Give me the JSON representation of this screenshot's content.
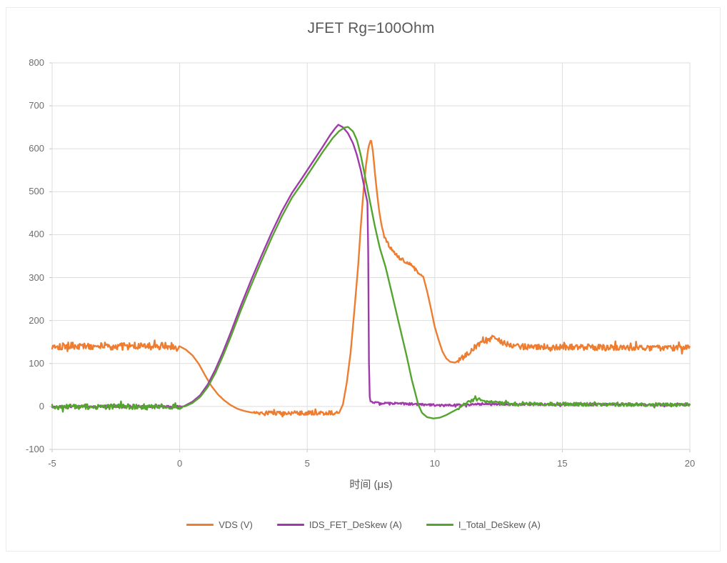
{
  "chart_data": {
    "type": "line",
    "title": "JFET Rg=100Ohm",
    "xlabel": "时间 (μs)",
    "xlim": [
      -5,
      20
    ],
    "ylim": [
      -100,
      800
    ],
    "x_ticks": [
      -5,
      0,
      5,
      10,
      15,
      20
    ],
    "y_ticks": [
      -100,
      0,
      100,
      200,
      300,
      400,
      500,
      600,
      700,
      800
    ],
    "grid": true,
    "legend_position": "bottom",
    "colors": {
      "background": "#FFFFFF",
      "gridline": "#DEDEDE",
      "axis_line": "#C3C3C3",
      "title_text": "#595959",
      "tick_text": "#6E6E6E"
    },
    "series": [
      {
        "key": "vds",
        "name": "VDS (V)",
        "color": "#ED7D31",
        "seed": 101,
        "noise": [
          [
            -5,
            -0.05,
            9
          ],
          [
            2.9,
            6.2,
            5
          ],
          [
            8.0,
            9.5,
            4
          ],
          [
            10.9,
            20,
            7
          ]
        ],
        "points": [
          [
            -5,
            141
          ],
          [
            0,
            140
          ],
          [
            0.25,
            132
          ],
          [
            0.5,
            119
          ],
          [
            0.75,
            99
          ],
          [
            1.0,
            72
          ],
          [
            1.25,
            47
          ],
          [
            1.5,
            28
          ],
          [
            1.75,
            14
          ],
          [
            2.0,
            3
          ],
          [
            2.25,
            -5
          ],
          [
            2.5,
            -10
          ],
          [
            2.8,
            -14
          ],
          [
            3.0,
            -15
          ],
          [
            6.25,
            -15
          ],
          [
            6.4,
            5
          ],
          [
            6.55,
            55
          ],
          [
            6.7,
            125
          ],
          [
            6.85,
            225
          ],
          [
            7.0,
            330
          ],
          [
            7.1,
            420
          ],
          [
            7.2,
            498
          ],
          [
            7.3,
            560
          ],
          [
            7.4,
            604
          ],
          [
            7.5,
            622
          ],
          [
            7.58,
            592
          ],
          [
            7.66,
            540
          ],
          [
            7.74,
            495
          ],
          [
            7.82,
            455
          ],
          [
            7.92,
            420
          ],
          [
            8.05,
            390
          ],
          [
            8.3,
            366
          ],
          [
            8.55,
            349
          ],
          [
            8.8,
            338
          ],
          [
            9.05,
            330
          ],
          [
            9.3,
            315
          ],
          [
            9.55,
            302
          ],
          [
            9.7,
            268
          ],
          [
            9.85,
            228
          ],
          [
            10.0,
            185
          ],
          [
            10.15,
            155
          ],
          [
            10.3,
            128
          ],
          [
            10.45,
            112
          ],
          [
            10.6,
            104
          ],
          [
            10.8,
            102
          ],
          [
            11.0,
            110
          ],
          [
            11.25,
            122
          ],
          [
            11.5,
            134
          ],
          [
            11.75,
            146
          ],
          [
            12.0,
            153
          ],
          [
            12.25,
            158
          ],
          [
            12.5,
            153
          ],
          [
            12.75,
            147
          ],
          [
            13.0,
            142
          ],
          [
            13.3,
            139
          ],
          [
            20,
            136
          ]
        ]
      },
      {
        "key": "ids_fet_deskew",
        "name": "IDS_FET_DeSkew (A)",
        "color": "#A03AAC",
        "seed": 202,
        "noise": [
          [
            -5,
            0.05,
            2.5
          ],
          [
            7.55,
            20,
            2.5
          ]
        ],
        "points": [
          [
            -5,
            0
          ],
          [
            0.15,
            0
          ],
          [
            0.5,
            11
          ],
          [
            0.8,
            26
          ],
          [
            1.1,
            51
          ],
          [
            1.4,
            86
          ],
          [
            1.7,
            127
          ],
          [
            2.0,
            172
          ],
          [
            2.4,
            235
          ],
          [
            2.8,
            294
          ],
          [
            3.2,
            350
          ],
          [
            3.6,
            404
          ],
          [
            4.0,
            454
          ],
          [
            4.4,
            497
          ],
          [
            4.8,
            532
          ],
          [
            5.2,
            568
          ],
          [
            5.6,
            604
          ],
          [
            5.9,
            632
          ],
          [
            6.1,
            648
          ],
          [
            6.22,
            656
          ],
          [
            6.4,
            650
          ],
          [
            6.6,
            636
          ],
          [
            6.8,
            612
          ],
          [
            6.95,
            585
          ],
          [
            7.1,
            550
          ],
          [
            7.2,
            522
          ],
          [
            7.3,
            492
          ],
          [
            7.38,
            470
          ],
          [
            7.4,
            250
          ],
          [
            7.43,
            30
          ],
          [
            7.48,
            12
          ],
          [
            7.7,
            8
          ],
          [
            9.0,
            6
          ],
          [
            9.8,
            4
          ],
          [
            10.4,
            2
          ],
          [
            11.0,
            4
          ],
          [
            12.0,
            6
          ],
          [
            13,
            5
          ],
          [
            20,
            4
          ]
        ]
      },
      {
        "key": "i_total_deskew",
        "name": "I_Total_DeSkew (A)",
        "color": "#55A42F",
        "seed": 303,
        "noise": [
          [
            -5,
            0.1,
            6
          ],
          [
            10.9,
            20,
            4
          ]
        ],
        "points": [
          [
            -5,
            -1
          ],
          [
            0.2,
            0
          ],
          [
            0.5,
            8
          ],
          [
            0.8,
            22
          ],
          [
            1.1,
            45
          ],
          [
            1.4,
            78
          ],
          [
            1.7,
            118
          ],
          [
            2.0,
            162
          ],
          [
            2.4,
            224
          ],
          [
            2.8,
            282
          ],
          [
            3.2,
            338
          ],
          [
            3.6,
            392
          ],
          [
            4.0,
            442
          ],
          [
            4.4,
            486
          ],
          [
            4.8,
            520
          ],
          [
            5.2,
            556
          ],
          [
            5.6,
            592
          ],
          [
            6.0,
            625
          ],
          [
            6.25,
            641
          ],
          [
            6.45,
            649
          ],
          [
            6.6,
            651
          ],
          [
            6.8,
            640
          ],
          [
            6.95,
            620
          ],
          [
            7.1,
            585
          ],
          [
            7.25,
            540
          ],
          [
            7.45,
            480
          ],
          [
            7.65,
            420
          ],
          [
            7.85,
            368
          ],
          [
            8.07,
            325
          ],
          [
            8.3,
            268
          ],
          [
            8.6,
            192
          ],
          [
            8.9,
            117
          ],
          [
            9.1,
            62
          ],
          [
            9.35,
            5
          ],
          [
            9.5,
            -15
          ],
          [
            9.7,
            -25
          ],
          [
            9.95,
            -28
          ],
          [
            10.2,
            -26
          ],
          [
            10.45,
            -20
          ],
          [
            10.7,
            -12
          ],
          [
            10.95,
            -4
          ],
          [
            11.15,
            4
          ],
          [
            11.4,
            12
          ],
          [
            11.6,
            16
          ],
          [
            11.85,
            15
          ],
          [
            12.1,
            11
          ],
          [
            12.4,
            8
          ],
          [
            13,
            6
          ],
          [
            20,
            4
          ]
        ]
      }
    ]
  }
}
